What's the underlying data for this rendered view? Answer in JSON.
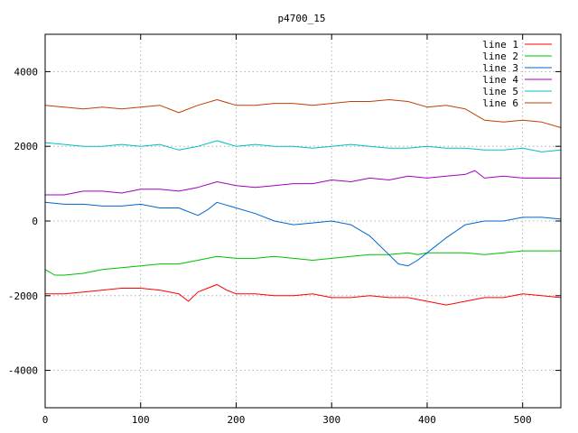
{
  "chart_data": {
    "type": "line",
    "title": "p4700_15",
    "xlabel": "",
    "ylabel": "",
    "xlim": [
      0,
      540
    ],
    "ylim": [
      -5000,
      5000
    ],
    "xticks": [
      0,
      100,
      200,
      300,
      400,
      500
    ],
    "yticks": [
      -4000,
      -2000,
      0,
      2000,
      4000
    ],
    "grid": true,
    "legend_position": "top-right",
    "series": [
      {
        "name": "line 1",
        "color": "#ff0000",
        "x": [
          0,
          20,
          40,
          60,
          80,
          100,
          120,
          140,
          150,
          160,
          170,
          180,
          190,
          200,
          220,
          240,
          260,
          280,
          300,
          320,
          340,
          360,
          380,
          400,
          420,
          440,
          460,
          480,
          500,
          520,
          540
        ],
        "y": [
          -1950,
          -1950,
          -1900,
          -1850,
          -1800,
          -1800,
          -1850,
          -1950,
          -2150,
          -1900,
          -1800,
          -1700,
          -1850,
          -1950,
          -1950,
          -2000,
          -2000,
          -1950,
          -2050,
          -2050,
          -2000,
          -2050,
          -2050,
          -2150,
          -2250,
          -2150,
          -2050,
          -2050,
          -1950,
          -2000,
          -2050
        ]
      },
      {
        "name": "line 2",
        "color": "#00c000",
        "x": [
          0,
          10,
          20,
          40,
          60,
          80,
          100,
          120,
          140,
          160,
          180,
          200,
          220,
          240,
          260,
          280,
          300,
          320,
          340,
          360,
          380,
          390,
          400,
          420,
          440,
          460,
          480,
          500,
          520,
          540
        ],
        "y": [
          -1300,
          -1450,
          -1450,
          -1400,
          -1300,
          -1250,
          -1200,
          -1150,
          -1150,
          -1050,
          -950,
          -1000,
          -1000,
          -950,
          -1000,
          -1050,
          -1000,
          -950,
          -900,
          -900,
          -850,
          -900,
          -850,
          -850,
          -850,
          -900,
          -850,
          -800,
          -800,
          -800
        ]
      },
      {
        "name": "line 3",
        "color": "#0066cc",
        "x": [
          0,
          20,
          40,
          60,
          80,
          100,
          120,
          140,
          160,
          170,
          180,
          200,
          220,
          240,
          260,
          280,
          300,
          320,
          340,
          360,
          370,
          380,
          390,
          400,
          420,
          440,
          460,
          480,
          500,
          520,
          540
        ],
        "y": [
          500,
          450,
          450,
          400,
          400,
          450,
          350,
          350,
          150,
          300,
          500,
          350,
          200,
          0,
          -100,
          -50,
          0,
          -100,
          -400,
          -900,
          -1150,
          -1200,
          -1050,
          -850,
          -450,
          -100,
          0,
          0,
          100,
          100,
          50
        ]
      },
      {
        "name": "line 4",
        "color": "#a000c0",
        "x": [
          0,
          20,
          40,
          60,
          80,
          100,
          120,
          140,
          160,
          180,
          200,
          220,
          240,
          260,
          280,
          300,
          320,
          340,
          360,
          380,
          400,
          420,
          440,
          450,
          460,
          480,
          500,
          520,
          540
        ],
        "y": [
          700,
          700,
          800,
          800,
          750,
          850,
          850,
          800,
          900,
          1050,
          950,
          900,
          950,
          1000,
          1000,
          1100,
          1050,
          1150,
          1100,
          1200,
          1150,
          1200,
          1250,
          1350,
          1150,
          1200,
          1150,
          1150,
          1150
        ]
      },
      {
        "name": "line 5",
        "color": "#00c0c0",
        "x": [
          0,
          20,
          40,
          60,
          80,
          100,
          120,
          140,
          160,
          180,
          200,
          220,
          240,
          260,
          280,
          300,
          320,
          340,
          360,
          380,
          400,
          420,
          440,
          460,
          480,
          500,
          520,
          540
        ],
        "y": [
          2100,
          2050,
          2000,
          2000,
          2050,
          2000,
          2050,
          1900,
          2000,
          2150,
          2000,
          2050,
          2000,
          2000,
          1950,
          2000,
          2050,
          2000,
          1950,
          1950,
          2000,
          1950,
          1950,
          1900,
          1900,
          1950,
          1850,
          1900
        ]
      },
      {
        "name": "line 6",
        "color": "#c04000",
        "x": [
          0,
          20,
          40,
          60,
          80,
          100,
          120,
          140,
          160,
          180,
          200,
          220,
          240,
          260,
          280,
          300,
          320,
          340,
          360,
          380,
          400,
          420,
          440,
          460,
          480,
          500,
          520,
          540
        ],
        "y": [
          3100,
          3050,
          3000,
          3050,
          3000,
          3050,
          3100,
          2900,
          3100,
          3250,
          3100,
          3100,
          3150,
          3150,
          3100,
          3150,
          3200,
          3200,
          3250,
          3200,
          3050,
          3100,
          3000,
          2700,
          2650,
          2700,
          2650,
          2500
        ]
      }
    ]
  }
}
